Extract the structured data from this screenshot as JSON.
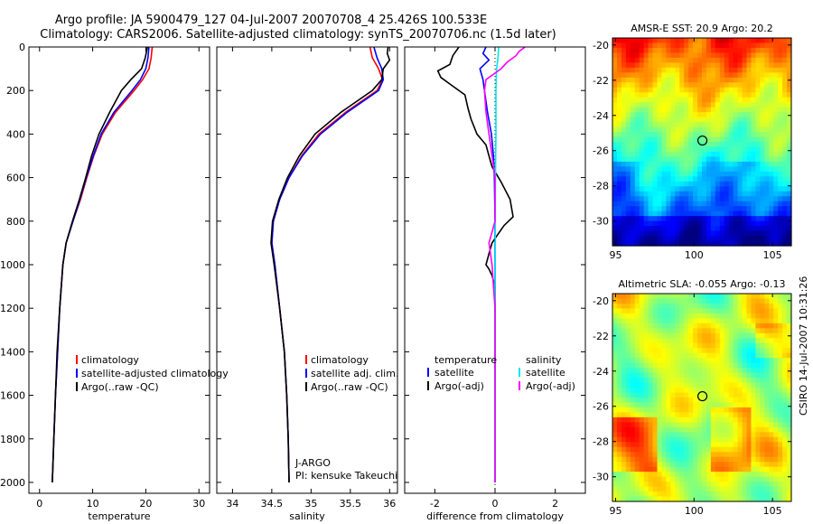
{
  "title_line1": "Argo profile: JA 5900479_127 04-Jul-2007 20070708_4 25.426S 100.533E",
  "title_line2": "Climatology: CARS2006. Satellite-adjusted climatology: synTS_20070706.nc (1.5d later)",
  "side_label": "CSIRO 14-Jul-2007 10:31:26",
  "colors": {
    "climatology": "#ff0000",
    "satellite": "#0000ff",
    "argo": "#000000",
    "sal_satellite": "#00e5ee",
    "sal_argo": "#ff00ff"
  },
  "chart_data": [
    {
      "type": "line",
      "name": "temperature-profile",
      "xlabel": "temperature",
      "ylabel": "",
      "xlim": [
        -2,
        32
      ],
      "ylim": [
        2050,
        0
      ],
      "xticks": [
        0,
        10,
        20,
        30
      ],
      "yticks": [
        0,
        200,
        400,
        600,
        800,
        1000,
        1200,
        1400,
        1600,
        1800,
        2000
      ],
      "legend": [
        "climatology",
        "satellite-adjusted climatology",
        "Argo(..raw -QC)"
      ],
      "series": [
        {
          "name": "climatology",
          "color": "#ff0000",
          "depth": [
            0,
            50,
            100,
            150,
            200,
            300,
            400,
            500,
            600,
            700,
            800,
            900,
            1000,
            1200,
            1400,
            1600,
            1800,
            2000
          ],
          "values": [
            21.2,
            21.0,
            20.6,
            19.4,
            17.8,
            14.3,
            11.8,
            10.2,
            8.9,
            7.7,
            6.3,
            5.0,
            4.4,
            3.8,
            3.4,
            3.0,
            2.7,
            2.4
          ]
        },
        {
          "name": "satellite",
          "color": "#0000ff",
          "depth": [
            0,
            50,
            100,
            150,
            200,
            300,
            400,
            500,
            600,
            700,
            800,
            900,
            1000,
            1200,
            1400,
            1600,
            1800,
            2000
          ],
          "values": [
            20.6,
            20.4,
            20.0,
            19.0,
            17.4,
            14.0,
            11.6,
            10.1,
            8.8,
            7.6,
            6.3,
            5.0,
            4.4,
            3.8,
            3.4,
            3.0,
            2.7,
            2.4
          ]
        },
        {
          "name": "Argo",
          "color": "#000000",
          "depth": [
            0,
            50,
            100,
            150,
            200,
            300,
            400,
            500,
            600,
            700,
            800,
            900,
            1000,
            1200,
            1400,
            1600,
            1800,
            2000
          ],
          "values": [
            20.3,
            19.9,
            19.2,
            17.2,
            15.4,
            13.2,
            11.2,
            9.8,
            8.7,
            7.5,
            6.2,
            5.0,
            4.4,
            3.8,
            3.3,
            3.0,
            2.7,
            2.4
          ]
        }
      ]
    },
    {
      "type": "line",
      "name": "salinity-profile",
      "xlabel": "salinity",
      "xlim": [
        33.8,
        36.1
      ],
      "ylim": [
        2050,
        0
      ],
      "xticks": [
        34,
        34.5,
        35,
        35.5,
        36
      ],
      "legend": [
        "climatology",
        "satellite adj. clim.",
        "Argo(..raw -QC)"
      ],
      "annotation": [
        "J-ARGO",
        "PI: kensuke Takeuchi"
      ],
      "series": [
        {
          "name": "climatology",
          "color": "#ff0000",
          "depth": [
            0,
            50,
            100,
            150,
            200,
            300,
            400,
            500,
            600,
            700,
            800,
            900,
            1000,
            1200,
            1400,
            1600,
            1800,
            2000
          ],
          "values": [
            35.75,
            35.78,
            35.86,
            35.91,
            35.84,
            35.44,
            35.1,
            34.88,
            34.72,
            34.6,
            34.52,
            34.5,
            34.54,
            34.6,
            34.66,
            34.69,
            34.71,
            34.72
          ]
        },
        {
          "name": "satellite",
          "color": "#0000ff",
          "depth": [
            0,
            50,
            100,
            150,
            200,
            300,
            400,
            500,
            600,
            700,
            800,
            900,
            1000,
            1200,
            1400,
            1600,
            1800,
            2000
          ],
          "values": [
            35.8,
            35.84,
            35.9,
            35.92,
            35.86,
            35.46,
            35.12,
            34.89,
            34.72,
            34.6,
            34.52,
            34.5,
            34.54,
            34.6,
            34.66,
            34.69,
            34.71,
            34.72
          ]
        },
        {
          "name": "Argo",
          "color": "#000000",
          "depth": [
            0,
            30,
            60,
            100,
            150,
            200,
            300,
            400,
            500,
            600,
            700,
            800,
            900,
            1000,
            1200,
            1400,
            1600,
            1800,
            2000
          ],
          "values": [
            35.98,
            35.97,
            36.0,
            35.92,
            35.9,
            35.78,
            35.38,
            35.05,
            34.85,
            34.7,
            34.59,
            34.51,
            34.49,
            34.53,
            34.6,
            34.66,
            34.69,
            34.71,
            34.72
          ]
        }
      ]
    },
    {
      "type": "line",
      "name": "difference-profile",
      "xlabel": "difference from climatology",
      "xlim": [
        -3,
        3
      ],
      "ylim": [
        2050,
        0
      ],
      "xticks": [
        -2,
        0,
        2
      ],
      "legend_left_title": "temperature",
      "legend_right_title": "salinity",
      "legend_left": [
        "satellite",
        "Argo(-adj)"
      ],
      "legend_right": [
        "satellite",
        "Argo(-adj)"
      ],
      "series": [
        {
          "name": "temp-satellite",
          "color": "#0000ff",
          "depth": [
            0,
            30,
            60,
            100,
            150,
            200,
            300,
            400,
            500,
            600,
            800,
            1000,
            1200,
            1500,
            2000
          ],
          "values": [
            -0.3,
            -0.4,
            -0.2,
            -0.5,
            -0.4,
            -0.35,
            -0.25,
            -0.12,
            -0.05,
            -0.02,
            0.0,
            0.0,
            0.0,
            0.0,
            0.0
          ]
        },
        {
          "name": "temp-argo",
          "color": "#000000",
          "depth": [
            0,
            40,
            80,
            110,
            140,
            180,
            220,
            280,
            330,
            400,
            450,
            500,
            550,
            620,
            700,
            780,
            820,
            860,
            900,
            950,
            1000,
            1020,
            1050,
            1100,
            1300,
            1500,
            2000
          ],
          "values": [
            -1.2,
            -1.4,
            -1.5,
            -1.9,
            -1.8,
            -1.4,
            -1.0,
            -0.9,
            -0.8,
            -0.6,
            -0.3,
            -0.2,
            -0.1,
            0.2,
            0.5,
            0.6,
            0.3,
            0.1,
            -0.1,
            -0.2,
            -0.3,
            -0.2,
            -0.1,
            0.0,
            0.0,
            0.0,
            0.0
          ]
        },
        {
          "name": "sal-satellite",
          "color": "#00e5ee",
          "depth": [
            0,
            50,
            100,
            150,
            200,
            300,
            400,
            500,
            700,
            900,
            1000,
            1200,
            1500,
            2000
          ],
          "values": [
            0.12,
            0.1,
            0.05,
            0.04,
            0.03,
            0.03,
            0.03,
            0.02,
            0.01,
            0.01,
            0.0,
            0.0,
            0.0,
            0.0
          ]
        },
        {
          "name": "sal-argo",
          "color": "#ff00ff",
          "depth": [
            0,
            20,
            40,
            70,
            100,
            150,
            200,
            300,
            400,
            500,
            600,
            800,
            850,
            900,
            950,
            1000,
            1100,
            1200,
            1300,
            1500,
            2000
          ],
          "values": [
            1.0,
            0.8,
            0.7,
            0.4,
            0.2,
            -0.3,
            -0.35,
            -0.3,
            -0.2,
            -0.1,
            0.0,
            0.0,
            -0.1,
            -0.2,
            -0.15,
            -0.1,
            -0.05,
            0.0,
            0.0,
            0.0,
            0.0
          ]
        }
      ]
    },
    {
      "type": "heatmap",
      "name": "amsre-sst-map",
      "title": "AMSR-E SST: 20.9 Argo: 20.2",
      "xlim": [
        94.8,
        106.2
      ],
      "ylim": [
        -31.4,
        -19.6
      ],
      "xticks": [
        95,
        100,
        105
      ],
      "yticks": [
        -20,
        -22,
        -24,
        -26,
        -28,
        -30
      ],
      "marker": {
        "lon": 100.533,
        "lat": -25.426
      },
      "colormap": "jet"
    },
    {
      "type": "heatmap",
      "name": "altimetric-sla-map",
      "title": "Altimetric SLA: -0.055 Argo: -0.13",
      "xlim": [
        94.8,
        106.2
      ],
      "ylim": [
        -31.4,
        -19.6
      ],
      "xticks": [
        95,
        100,
        105
      ],
      "yticks": [
        -20,
        -22,
        -24,
        -26,
        -28,
        -30
      ],
      "marker": {
        "lon": 100.533,
        "lat": -25.426
      },
      "colormap": "jet"
    }
  ]
}
